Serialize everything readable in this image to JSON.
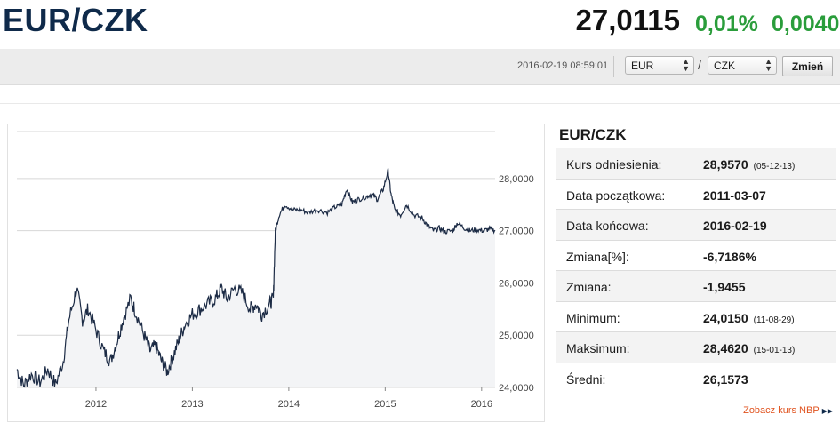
{
  "header": {
    "pair": "EUR/CZK",
    "price": "27,0115",
    "change_pct": "0,01%",
    "change_abs": "0,0040",
    "change_color": "#2a9d3b"
  },
  "toolbar": {
    "timestamp": "2016-02-19 08:59:01",
    "from_currency": "EUR",
    "separator": "/",
    "to_currency": "CZK",
    "submit_label": "Zmień"
  },
  "info": {
    "title": "EUR/CZK",
    "rows": [
      {
        "label": "Kurs odniesienia:",
        "value": "28,9570",
        "date": "(05-12-13)"
      },
      {
        "label": "Data początkowa:",
        "value": "2011-03-07",
        "date": ""
      },
      {
        "label": "Data końcowa:",
        "value": "2016-02-19",
        "date": ""
      },
      {
        "label": "Zmiana[%]:",
        "value": "-6,7186%",
        "date": ""
      },
      {
        "label": "Zmiana:",
        "value": "-1,9455",
        "date": ""
      },
      {
        "label": "Minimum:",
        "value": "24,0150",
        "date": "(11-08-29)"
      },
      {
        "label": "Maksimum:",
        "value": "28,4620",
        "date": "(15-01-13)"
      },
      {
        "label": "Średni:",
        "value": "26,1573",
        "date": ""
      }
    ],
    "nbp_link": "Zobacz kurs NBP"
  },
  "chart_data": {
    "type": "area",
    "x_ticks": [
      "2012",
      "2013",
      "2014",
      "2015",
      "2016"
    ],
    "y_ticks": [
      "24,0000",
      "25,0000",
      "26,0000",
      "27,0000",
      "28,0000"
    ],
    "ylim": [
      24.0,
      28.9
    ],
    "xlim": [
      2011.18,
      2016.14
    ],
    "grid": true,
    "line_color": "#1c2b45",
    "fill_color": "#f3f4f6",
    "points": [
      [
        2011.18,
        24.35
      ],
      [
        2011.25,
        24.05
      ],
      [
        2011.33,
        24.25
      ],
      [
        2011.42,
        24.1
      ],
      [
        2011.5,
        24.35
      ],
      [
        2011.58,
        24.05
      ],
      [
        2011.66,
        24.5
      ],
      [
        2011.72,
        25.3
      ],
      [
        2011.8,
        25.9
      ],
      [
        2011.86,
        25.3
      ],
      [
        2011.92,
        25.5
      ],
      [
        2012.0,
        25.1
      ],
      [
        2012.08,
        24.7
      ],
      [
        2012.15,
        24.5
      ],
      [
        2012.22,
        24.9
      ],
      [
        2012.28,
        25.3
      ],
      [
        2012.36,
        25.7
      ],
      [
        2012.42,
        25.4
      ],
      [
        2012.5,
        25.0
      ],
      [
        2012.56,
        24.7
      ],
      [
        2012.62,
        24.8
      ],
      [
        2012.68,
        24.5
      ],
      [
        2012.74,
        24.3
      ],
      [
        2012.8,
        24.6
      ],
      [
        2012.86,
        24.9
      ],
      [
        2012.92,
        25.2
      ],
      [
        2013.0,
        25.4
      ],
      [
        2013.08,
        25.5
      ],
      [
        2013.16,
        25.6
      ],
      [
        2013.24,
        25.7
      ],
      [
        2013.3,
        25.9
      ],
      [
        2013.36,
        25.7
      ],
      [
        2013.44,
        25.9
      ],
      [
        2013.52,
        25.8
      ],
      [
        2013.6,
        25.5
      ],
      [
        2013.66,
        25.6
      ],
      [
        2013.72,
        25.4
      ],
      [
        2013.8,
        25.6
      ],
      [
        2013.84,
        25.7
      ],
      [
        2013.86,
        27.0
      ],
      [
        2013.9,
        27.3
      ],
      [
        2013.96,
        27.5
      ],
      [
        2014.04,
        27.4
      ],
      [
        2014.12,
        27.4
      ],
      [
        2014.2,
        27.35
      ],
      [
        2014.3,
        27.4
      ],
      [
        2014.4,
        27.35
      ],
      [
        2014.48,
        27.45
      ],
      [
        2014.55,
        27.5
      ],
      [
        2014.6,
        27.8
      ],
      [
        2014.66,
        27.55
      ],
      [
        2014.72,
        27.6
      ],
      [
        2014.8,
        27.65
      ],
      [
        2014.86,
        27.7
      ],
      [
        2014.92,
        27.6
      ],
      [
        2014.98,
        27.8
      ],
      [
        2015.03,
        28.15
      ],
      [
        2015.06,
        27.7
      ],
      [
        2015.1,
        27.4
      ],
      [
        2015.16,
        27.3
      ],
      [
        2015.22,
        27.5
      ],
      [
        2015.3,
        27.3
      ],
      [
        2015.38,
        27.25
      ],
      [
        2015.44,
        27.1
      ],
      [
        2015.5,
        27.0
      ],
      [
        2015.56,
        27.05
      ],
      [
        2015.62,
        26.98
      ],
      [
        2015.7,
        27.0
      ],
      [
        2015.75,
        27.15
      ],
      [
        2015.82,
        27.05
      ],
      [
        2015.88,
        27.0
      ],
      [
        2015.95,
        27.02
      ],
      [
        2016.02,
        27.0
      ],
      [
        2016.08,
        27.03
      ],
      [
        2016.14,
        27.01
      ]
    ]
  }
}
